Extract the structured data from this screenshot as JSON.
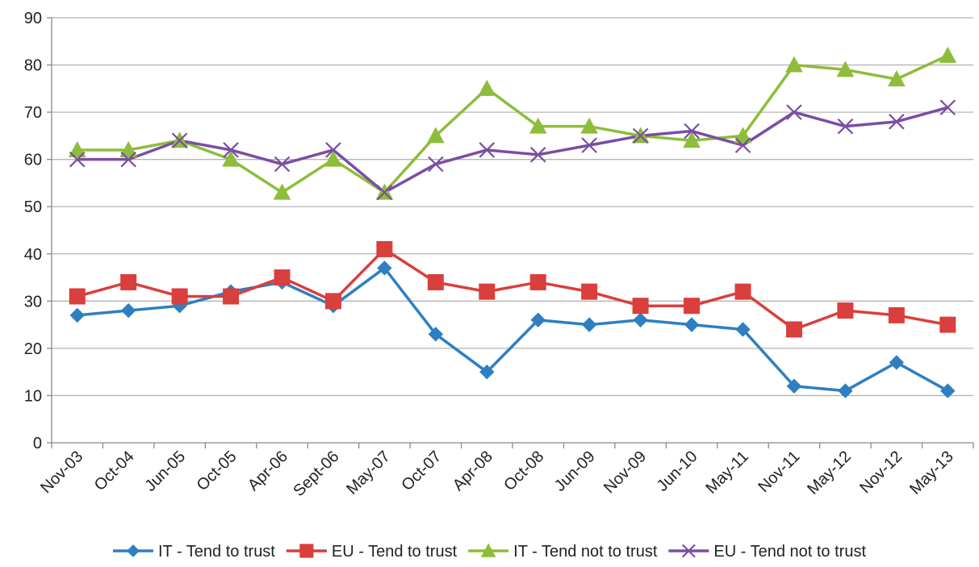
{
  "chart_data": {
    "type": "line",
    "categories": [
      "Nov-03",
      "Oct-04",
      "Jun-05",
      "Oct-05",
      "Apr-06",
      "Sept-06",
      "May-07",
      "Oct-07",
      "Apr-08",
      "Oct-08",
      "Jun-09",
      "Nov-09",
      "Jun-10",
      "May-11",
      "Nov-11",
      "May-12",
      "Nov-12",
      "May-13"
    ],
    "ylim": [
      0,
      90
    ],
    "yticks": [
      0,
      10,
      20,
      30,
      40,
      50,
      60,
      70,
      80,
      90
    ],
    "grid": true,
    "legend_position": "bottom",
    "series": [
      {
        "name": "IT - Tend to trust",
        "color": "#2E7FC1",
        "marker": "diamond",
        "values": [
          27,
          28,
          29,
          32,
          34,
          29,
          37,
          23,
          15,
          26,
          25,
          26,
          25,
          24,
          12,
          11,
          17,
          11
        ]
      },
      {
        "name": "EU - Tend to trust",
        "color": "#D93F3C",
        "marker": "square",
        "values": [
          31,
          34,
          31,
          31,
          35,
          30,
          41,
          34,
          32,
          34,
          32,
          29,
          29,
          32,
          24,
          28,
          27,
          25
        ]
      },
      {
        "name": "IT - Tend not to trust",
        "color": "#8DBD3A",
        "marker": "triangle",
        "values": [
          62,
          62,
          64,
          60,
          53,
          60,
          53,
          65,
          75,
          67,
          67,
          65,
          64,
          65,
          80,
          79,
          77,
          82
        ]
      },
      {
        "name": "EU - Tend not to trust",
        "color": "#7B4DA3",
        "marker": "x",
        "values": [
          60,
          60,
          64,
          62,
          59,
          62,
          53,
          59,
          62,
          61,
          63,
          65,
          66,
          63,
          70,
          67,
          68,
          71
        ]
      }
    ]
  }
}
